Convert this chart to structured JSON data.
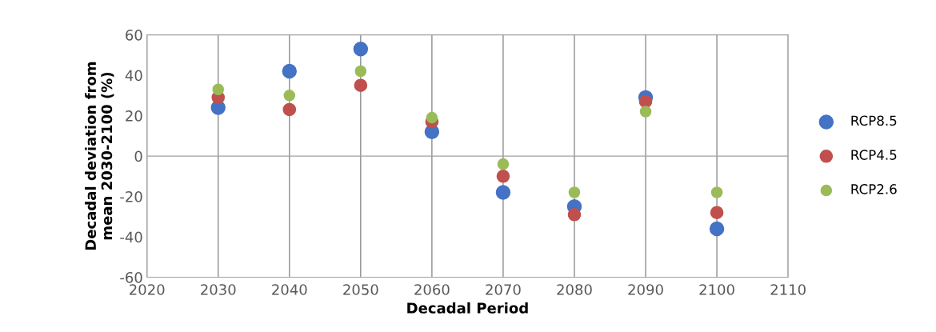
{
  "chart_data": {
    "type": "scatter",
    "xlabel": "Decadal Period",
    "ylabel": "Decadal deviation from\nmean 2030-2100 (%)",
    "x": [
      2030,
      2040,
      2050,
      2060,
      2070,
      2080,
      2090,
      2100
    ],
    "series": [
      {
        "name": "RCP8.5",
        "color": "#4472c4",
        "values": [
          24,
          42,
          53,
          12,
          -18,
          -25,
          29,
          -36
        ]
      },
      {
        "name": "RCP4.5",
        "color": "#c0504d",
        "values": [
          29,
          23,
          35,
          17,
          -10,
          -29,
          27,
          -28
        ]
      },
      {
        "name": "RCP2.6",
        "color": "#9bbb59",
        "values": [
          33,
          30,
          42,
          19,
          -4,
          -18,
          22,
          -18
        ]
      }
    ],
    "xlim": [
      2020,
      2110
    ],
    "xticks": [
      2020,
      2030,
      2040,
      2050,
      2060,
      2070,
      2080,
      2090,
      2100,
      2110
    ],
    "ylim": [
      -60,
      60
    ],
    "yticks": [
      -60,
      -40,
      -20,
      0,
      20,
      40,
      60
    ],
    "grid": "x",
    "legend": "right",
    "marker": "circle"
  }
}
